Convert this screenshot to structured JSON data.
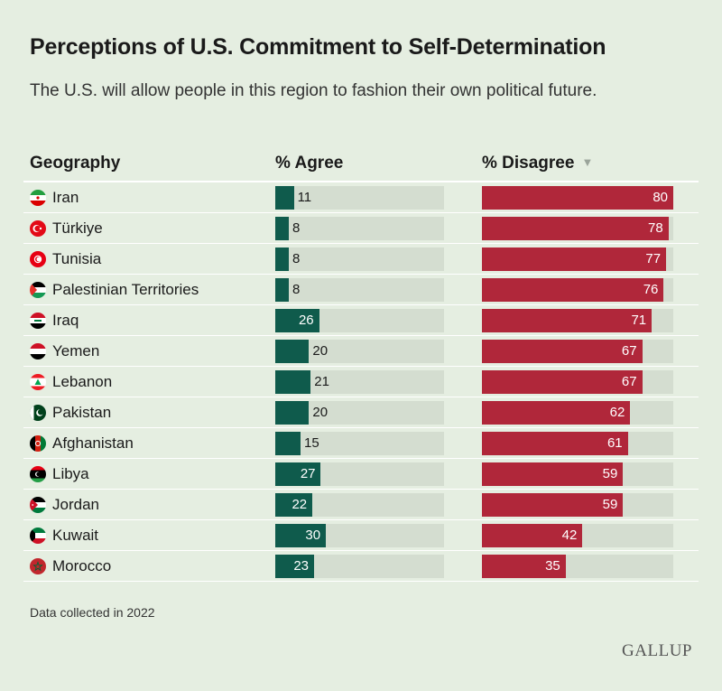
{
  "header": {
    "title": "Perceptions of U.S. Commitment to Self-Determination",
    "subtitle": "The U.S. will allow people in this region to fashion their own political future."
  },
  "columns": {
    "geography": "Geography",
    "agree": "% Agree",
    "disagree": "% Disagree",
    "sort_icon": "sort-down-icon"
  },
  "chart_data": {
    "type": "bar",
    "title": "Perceptions of U.S. Commitment to Self-Determination",
    "subtitle": "The U.S. will allow people in this region to fashion their own political future.",
    "categories": [
      "Iran",
      "Türkiye",
      "Tunisia",
      "Palestinian Territories",
      "Iraq",
      "Yemen",
      "Lebanon",
      "Pakistan",
      "Afghanistan",
      "Libya",
      "Jordan",
      "Kuwait",
      "Morocco"
    ],
    "series": [
      {
        "name": "% Agree",
        "color": "#0f5b4c",
        "values": [
          11,
          8,
          8,
          8,
          26,
          20,
          21,
          20,
          15,
          27,
          22,
          30,
          23
        ]
      },
      {
        "name": "% Disagree",
        "color": "#b0273a",
        "values": [
          80,
          78,
          77,
          76,
          71,
          67,
          67,
          62,
          61,
          59,
          59,
          42,
          35
        ]
      }
    ],
    "flags": [
      "iran-flag-icon",
      "turkiye-flag-icon",
      "tunisia-flag-icon",
      "palestine-flag-icon",
      "iraq-flag-icon",
      "yemen-flag-icon",
      "lebanon-flag-icon",
      "pakistan-flag-icon",
      "afghanistan-flag-icon",
      "libya-flag-icon",
      "jordan-flag-icon",
      "kuwait-flag-icon",
      "morocco-flag-icon"
    ],
    "agree_max": 100,
    "disagree_max": 80,
    "sorted_by": "% Disagree",
    "sort_order": "descending"
  },
  "footer": {
    "note": "Data collected in 2022",
    "logo": "GALLUP"
  },
  "colors": {
    "background": "#e5eee1",
    "track": "#d4ddd0",
    "agree": "#0f5b4c",
    "disagree": "#b0273a"
  }
}
